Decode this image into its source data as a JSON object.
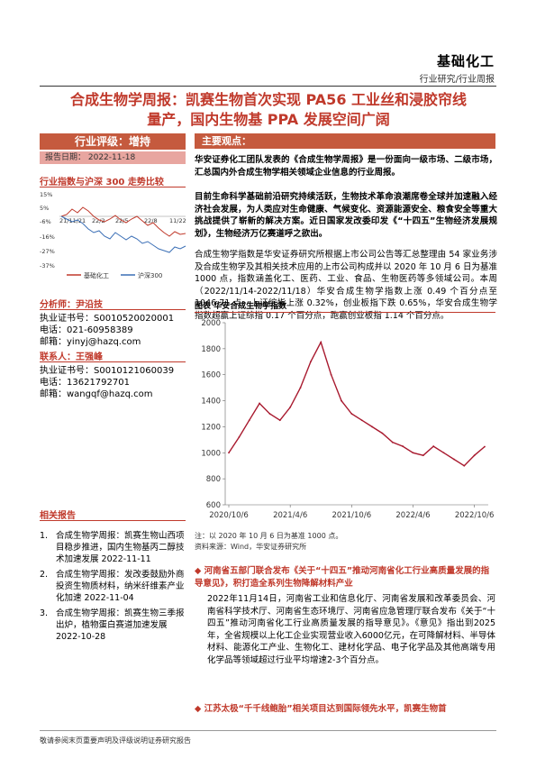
{
  "header": {
    "brand": "基础化工",
    "subtitle": "行业研究/行业周报"
  },
  "title_lines": [
    "合成生物学周报：凯赛生物首次实现 PA56 工业丝和浸胶帘线",
    "量产，国内生物基 PPA 发展空间广阔"
  ],
  "rating": {
    "label": "行业评级：增持",
    "date": "报告日期：  2022-11-18"
  },
  "mini_chart": {
    "title": "行业指数与沪深 300 走势比较",
    "y_ticks": [
      "15%",
      "5%",
      "-6%",
      "-16%",
      "-27%",
      "-37%"
    ],
    "x_ticks": [
      "21/11/21",
      "22/2",
      "22/5",
      "22/8",
      "11/22"
    ],
    "legend": [
      "基础化工",
      "沪深300"
    ],
    "colors": {
      "sector": "#C0392B",
      "csi300": "#3B6FB6"
    }
  },
  "analysts": [
    {
      "role": "分析师：尹沿技",
      "lines": [
        "执业证书号：S0010520020001",
        "电话：021-60958389",
        "邮箱：yinyj@hazq.com"
      ]
    },
    {
      "role": "联系人：王强峰",
      "lines": [
        "执业证书号：S0010121060039",
        "电话：13621792701",
        "邮箱：wangqf@hazq.com"
      ]
    }
  ],
  "related_reports": {
    "title": "相关报告",
    "items": [
      {
        "num": "1.",
        "text": "合成生物学周报：凯赛生物山西项目稳步推进，国内生物基丙二醇技术加速发展 2022-11-11"
      },
      {
        "num": "2.",
        "text": "合成生物学周报：发改委鼓励外商投资生物质材料，纳米纤维素产业化加速 2022-11-04"
      },
      {
        "num": "3.",
        "text": "合成生物学周报：凯赛生物三季报出炉，植物蛋白赛道加速发展 2022-10-28"
      }
    ]
  },
  "main_view": {
    "heading": "主要观点：",
    "p1": "华安证券化工团队发表的《合成生物学周报》是一份面向一级市场、二级市场，汇总国内外合成生物学相关领域企业信息的行业周报。",
    "p2": "目前生命科学基础前沿研究持续活跃，生物技术革命浪潮席卷全球并加速融入经济社会发展，为人类应对生命健康、气候变化、资源能源安全、粮食安全等重大挑战提供了崭新的解决方案。近日国家发改委印发《“十四五”生物经济发展规划》，生物经济万亿赛道呼之欲出。",
    "p3": "合成生物学指数是华安证券研究所根据上市公司公告等汇总整理由 54 家业务涉及合成生物学及其相关技术应用的上市公司构成并以 2020 年 10 月 6 日为基准 1000 点，指数涵盖化工、医药、工业、食品、生物医药等多领域公司。本周（2022/11/14-2022/11/18）华安合成生物学指数上涨 0.49 个百分点至 1046.71 点。上证综指上涨 0.32%，创业板指下跌 0.65%，华安合成生物学指数超赢上证综指 0.17 个百分点，跑赢创业板指 1.14 个百分点。"
  },
  "chart_data": {
    "type": "line",
    "title": "图表 华安合成生物学指数",
    "y_ticks": [
      "2000",
      "1800",
      "1600",
      "1400",
      "1200",
      "1000",
      "800",
      "600"
    ],
    "ylim": [
      600,
      2000
    ],
    "x_ticks": [
      "2020/10/6",
      "2021/4/6",
      "2021/10/6",
      "2022/4/6",
      "2022/10/6"
    ],
    "x": [
      "2020/10/6",
      "2020/11/6",
      "2020/12/6",
      "2021/1/6",
      "2021/2/6",
      "2021/3/6",
      "2021/4/6",
      "2021/5/6",
      "2021/6/6",
      "2021/7/6",
      "2021/8/6",
      "2021/9/6",
      "2021/10/6",
      "2021/11/6",
      "2021/12/6",
      "2022/1/6",
      "2022/2/6",
      "2022/3/6",
      "2022/4/6",
      "2022/5/6",
      "2022/6/6",
      "2022/7/6",
      "2022/8/6",
      "2022/9/6",
      "2022/10/6",
      "2022/11/18"
    ],
    "series": [
      {
        "values": [
          1000,
          1120,
          1250,
          1380,
          1300,
          1250,
          1350,
          1500,
          1700,
          1850,
          1600,
          1400,
          1300,
          1250,
          1200,
          1150,
          1080,
          1050,
          1000,
          980,
          1050,
          1000,
          950,
          900,
          980,
          1047
        ]
      }
    ],
    "note": "注：以 2020 年 10 月 6 日为基准 1000 点。",
    "source": "资料来源：Wind，华安证券研究所",
    "line_color": "#A8192E"
  },
  "news": {
    "title1": "河南省五部门联合发布《关于“十四五”推动河南省化工行业高质量发展的指导意见》，积打造全系列生物降解材料产业",
    "body1": "2022年11月14日，河南省工业和信息化厅、河南省发展和改革委员会、河南省科学技术厅、河南省生态环境厅、河南省应急管理厅联合发布《关于“十四五”推动河南省化工行业高质量发展的指导意见》。《意见》指出到2025年，全省规模以上化工企业实现营业收入6000亿元，在可降解材料、半导体材料、能源化工产业、生物化工、建材化学品、电子化学品及其他高端专用化学品等领域超过行业平均增速2-3个百分点。",
    "title2": "江苏太极“千千线鲍胎”相关项目达到国际领先水平，凯赛生物首"
  },
  "footer": "敬请参阅末页重要声明及评级说明证券研究报告"
}
